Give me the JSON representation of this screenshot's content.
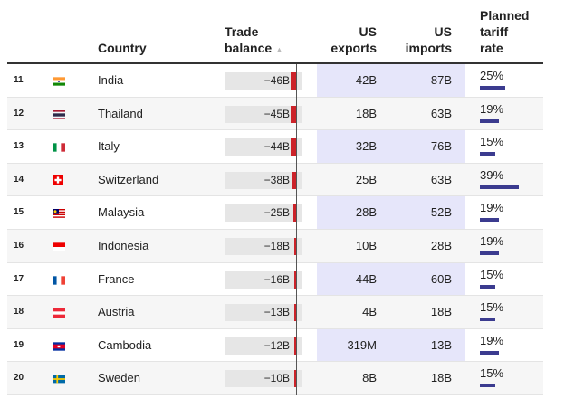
{
  "headers": {
    "country": "Country",
    "trade_balance_1": "Trade",
    "trade_balance_2": "balance",
    "sort_icon": "▲",
    "exports_1": "US",
    "exports_2": "exports",
    "imports_1": "US",
    "imports_2": "imports",
    "tariff_1": "Planned",
    "tariff_2": "tariff",
    "tariff_3": "rate"
  },
  "colors": {
    "negative": "#cc2229",
    "tariff": "#3b3b8f",
    "highlight": "#e6e6fa"
  },
  "rows": [
    {
      "rank": "11",
      "flag": "india",
      "country": "India",
      "balance": "−46B",
      "balance_value": -46,
      "exports": "42B",
      "imports": "87B",
      "tariff": "25%",
      "tariff_value": 25
    },
    {
      "rank": "12",
      "flag": "thailand",
      "country": "Thailand",
      "balance": "−45B",
      "balance_value": -45,
      "exports": "18B",
      "imports": "63B",
      "tariff": "19%",
      "tariff_value": 19
    },
    {
      "rank": "13",
      "flag": "italy",
      "country": "Italy",
      "balance": "−44B",
      "balance_value": -44,
      "exports": "32B",
      "imports": "76B",
      "tariff": "15%",
      "tariff_value": 15
    },
    {
      "rank": "14",
      "flag": "switzerland",
      "country": "Switzerland",
      "balance": "−38B",
      "balance_value": -38,
      "exports": "25B",
      "imports": "63B",
      "tariff": "39%",
      "tariff_value": 39
    },
    {
      "rank": "15",
      "flag": "malaysia",
      "country": "Malaysia",
      "balance": "−25B",
      "balance_value": -25,
      "exports": "28B",
      "imports": "52B",
      "tariff": "19%",
      "tariff_value": 19
    },
    {
      "rank": "16",
      "flag": "indonesia",
      "country": "Indonesia",
      "balance": "−18B",
      "balance_value": -18,
      "exports": "10B",
      "imports": "28B",
      "tariff": "19%",
      "tariff_value": 19
    },
    {
      "rank": "17",
      "flag": "france",
      "country": "France",
      "balance": "−16B",
      "balance_value": -16,
      "exports": "44B",
      "imports": "60B",
      "tariff": "15%",
      "tariff_value": 15
    },
    {
      "rank": "18",
      "flag": "austria",
      "country": "Austria",
      "balance": "−13B",
      "balance_value": -13,
      "exports": "4B",
      "imports": "18B",
      "tariff": "15%",
      "tariff_value": 15
    },
    {
      "rank": "19",
      "flag": "cambodia",
      "country": "Cambodia",
      "balance": "−12B",
      "balance_value": -12,
      "exports": "319M",
      "imports": "13B",
      "tariff": "19%",
      "tariff_value": 19
    },
    {
      "rank": "20",
      "flag": "sweden",
      "country": "Sweden",
      "balance": "−10B",
      "balance_value": -10,
      "exports": "8B",
      "imports": "18B",
      "tariff": "15%",
      "tariff_value": 15
    }
  ]
}
